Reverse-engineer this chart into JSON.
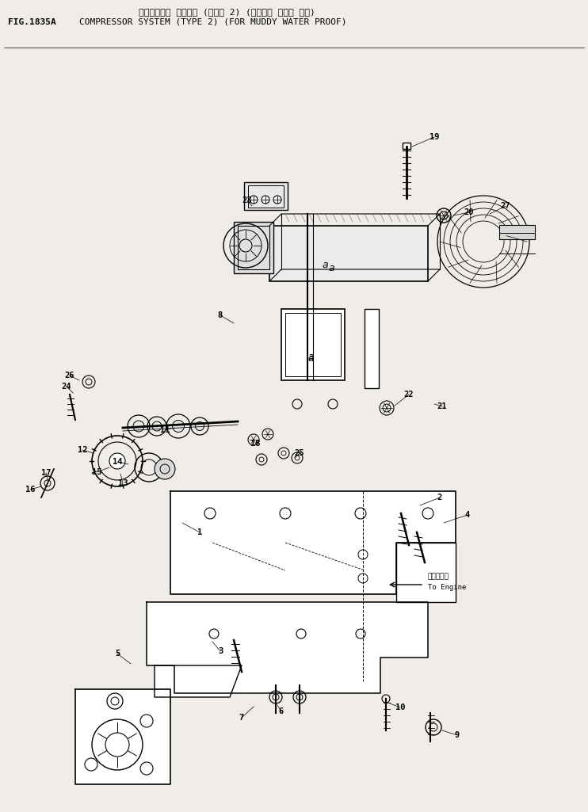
{
  "title_japanese": "コンプレッサ システム (タイプ 2) (ドロミズ ボウシ ヨウ)",
  "title_english": "COMPRESSOR SYSTEM (TYPE 2) (FOR MUDDY WATER PROOF)",
  "fig_label": "FIG.1835A",
  "bg_color": "#f0ede8",
  "line_color": "#000000",
  "annotation_to_engine_jp": "エンジンへ",
  "annotation_to_engine_en": "To Engine"
}
